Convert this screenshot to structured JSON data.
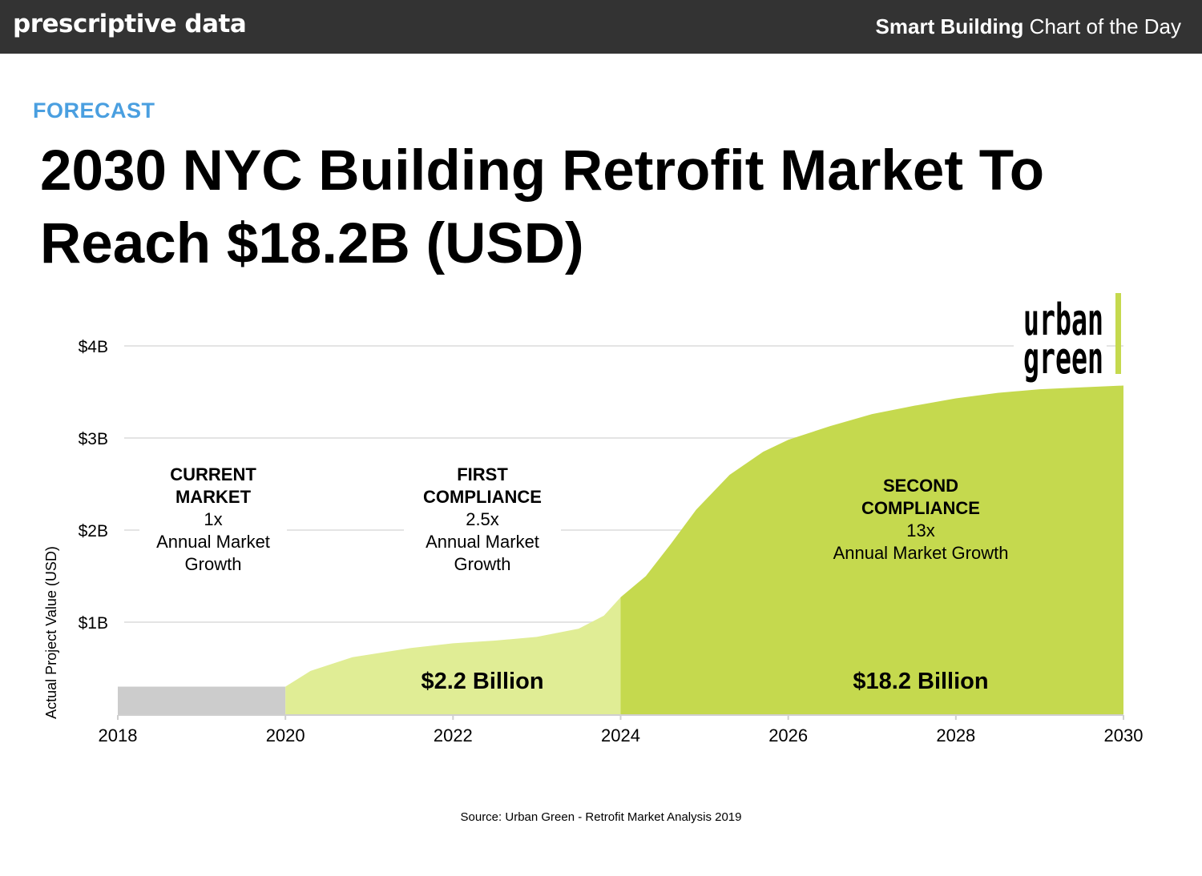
{
  "header": {
    "brand": "prescriptive data",
    "series_bold": "Smart Building",
    "series_rest": " Chart of the Day"
  },
  "kicker": "FORECAST",
  "headline": "2030 NYC Building Retrofit Market To Reach $18.2B (USD)",
  "logo": {
    "line1": "urban",
    "line2": "green",
    "accent_color": "#c5d94e"
  },
  "source": "Source: Urban Green - Retrofit Market Analysis 2019",
  "colors": {
    "current": "#cccccc",
    "first": "#e0ed95",
    "second": "#c5d94e",
    "grid": "#e4e4e4",
    "axis": "#cfcfcf"
  },
  "chart_data": {
    "type": "area",
    "ylabel": "Actual Project Value (USD)",
    "xlabel": "",
    "xlim": [
      2018,
      2030
    ],
    "ylim": [
      0,
      4
    ],
    "x_ticks": [
      "2018",
      "2020",
      "2022",
      "2024",
      "2026",
      "2028",
      "2030"
    ],
    "y_ticks": [
      {
        "value": 1,
        "label": "$1B"
      },
      {
        "value": 2,
        "label": "$2B"
      },
      {
        "value": 3,
        "label": "$3B"
      },
      {
        "value": 4,
        "label": "$4B"
      }
    ],
    "series": [
      {
        "key": "current",
        "x": [
          2018,
          2019,
          2020
        ],
        "y": [
          0.3,
          0.3,
          0.3
        ]
      },
      {
        "key": "first",
        "x": [
          2020,
          2020.3,
          2020.8,
          2021.5,
          2022,
          2022.5,
          2023,
          2023.5,
          2023.8,
          2024
        ],
        "y": [
          0.3,
          0.47,
          0.62,
          0.72,
          0.77,
          0.8,
          0.84,
          0.93,
          1.07,
          1.27
        ]
      },
      {
        "key": "second",
        "x": [
          2024,
          2024.3,
          2024.6,
          2024.9,
          2025.3,
          2025.7,
          2026,
          2026.5,
          2027,
          2027.5,
          2028,
          2028.5,
          2029,
          2029.5,
          2030
        ],
        "y": [
          1.27,
          1.5,
          1.85,
          2.22,
          2.6,
          2.85,
          2.98,
          3.13,
          3.26,
          3.35,
          3.43,
          3.49,
          3.53,
          3.55,
          3.57
        ]
      }
    ],
    "annotations": [
      {
        "key": "current",
        "bold": [
          "CURRENT",
          "MARKET"
        ],
        "lines": [
          "1x",
          "Annual Market",
          "Growth"
        ]
      },
      {
        "key": "first",
        "bold": [
          "FIRST",
          "COMPLIANCE"
        ],
        "lines": [
          "2.5x",
          "Annual Market",
          "Growth"
        ]
      },
      {
        "key": "second",
        "bold": [
          "SECOND",
          "COMPLIANCE"
        ],
        "lines": [
          "13x",
          "Annual Market Growth"
        ]
      }
    ],
    "totals": [
      {
        "key": "first",
        "label": "$2.2 Billion"
      },
      {
        "key": "second",
        "label": "$18.2 Billion"
      }
    ]
  }
}
